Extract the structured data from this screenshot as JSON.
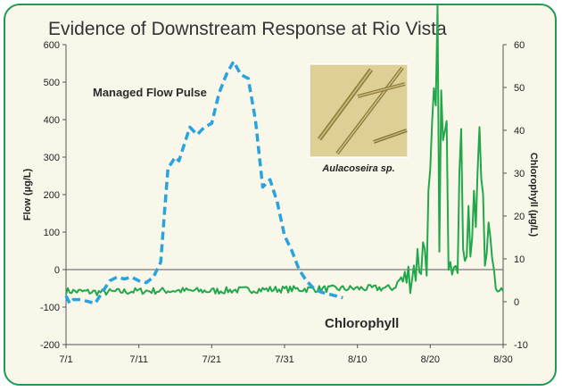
{
  "chart_data": {
    "type": "line",
    "title": "Evidence of Downstream Response at Rio Vista",
    "ylabel": "Flow (µg/L)",
    "y2label": "Chlorophyll (µg/L)",
    "ylim": [
      -200,
      600
    ],
    "y2lim": [
      -10,
      60
    ],
    "yticks": [
      "600",
      "500",
      "400",
      "300",
      "200",
      "100",
      "0",
      "-100",
      "-200"
    ],
    "y2ticks": [
      "60",
      "50",
      "40",
      "30",
      "20",
      "10",
      "0",
      "-10"
    ],
    "xticks": [
      "7/1",
      "7/11",
      "7/21",
      "7/31",
      "8/10",
      "8/20",
      "8/30"
    ],
    "x_domain_days": [
      0,
      60
    ],
    "annotation": "Managed Flow Pulse",
    "image_caption": "Aulacoseira sp.",
    "series": [
      {
        "name": "Managed Flow Pulse",
        "axis": "left",
        "style": "dashed",
        "color": "#29a3dd",
        "x": [
          0,
          0.5,
          1,
          2,
          3,
          4,
          5,
          6,
          7,
          8,
          9,
          10,
          11,
          12,
          13,
          13.5,
          14,
          15,
          15.5,
          16,
          17,
          18,
          19,
          20,
          21,
          22,
          23,
          24,
          25,
          26,
          27,
          28,
          29,
          30,
          31,
          32,
          33,
          34,
          35,
          36,
          37,
          38
        ],
        "values": [
          -70,
          -90,
          -80,
          -80,
          -85,
          -90,
          -60,
          -30,
          -20,
          -25,
          -20,
          -30,
          -35,
          -20,
          20,
          150,
          270,
          300,
          290,
          320,
          380,
          360,
          380,
          390,
          470,
          520,
          555,
          520,
          510,
          400,
          220,
          240,
          180,
          90,
          50,
          0,
          -30,
          -50,
          -60,
          -65,
          -70,
          -75
        ]
      },
      {
        "name": "Chlorophyll",
        "axis": "right",
        "style": "solid",
        "color": "#22a84a",
        "x": [
          0,
          5,
          10,
          15,
          20,
          25,
          30,
          35,
          40,
          45,
          47,
          49,
          50,
          51,
          52,
          53,
          54,
          55,
          56,
          57,
          58,
          59,
          60
        ],
        "values": [
          2.5,
          2.2,
          2.5,
          2.6,
          2.5,
          2.8,
          2.9,
          3.0,
          3.1,
          3.2,
          8,
          15,
          28,
          55,
          40,
          22,
          35,
          25,
          20,
          45,
          18,
          3,
          3
        ]
      }
    ]
  }
}
